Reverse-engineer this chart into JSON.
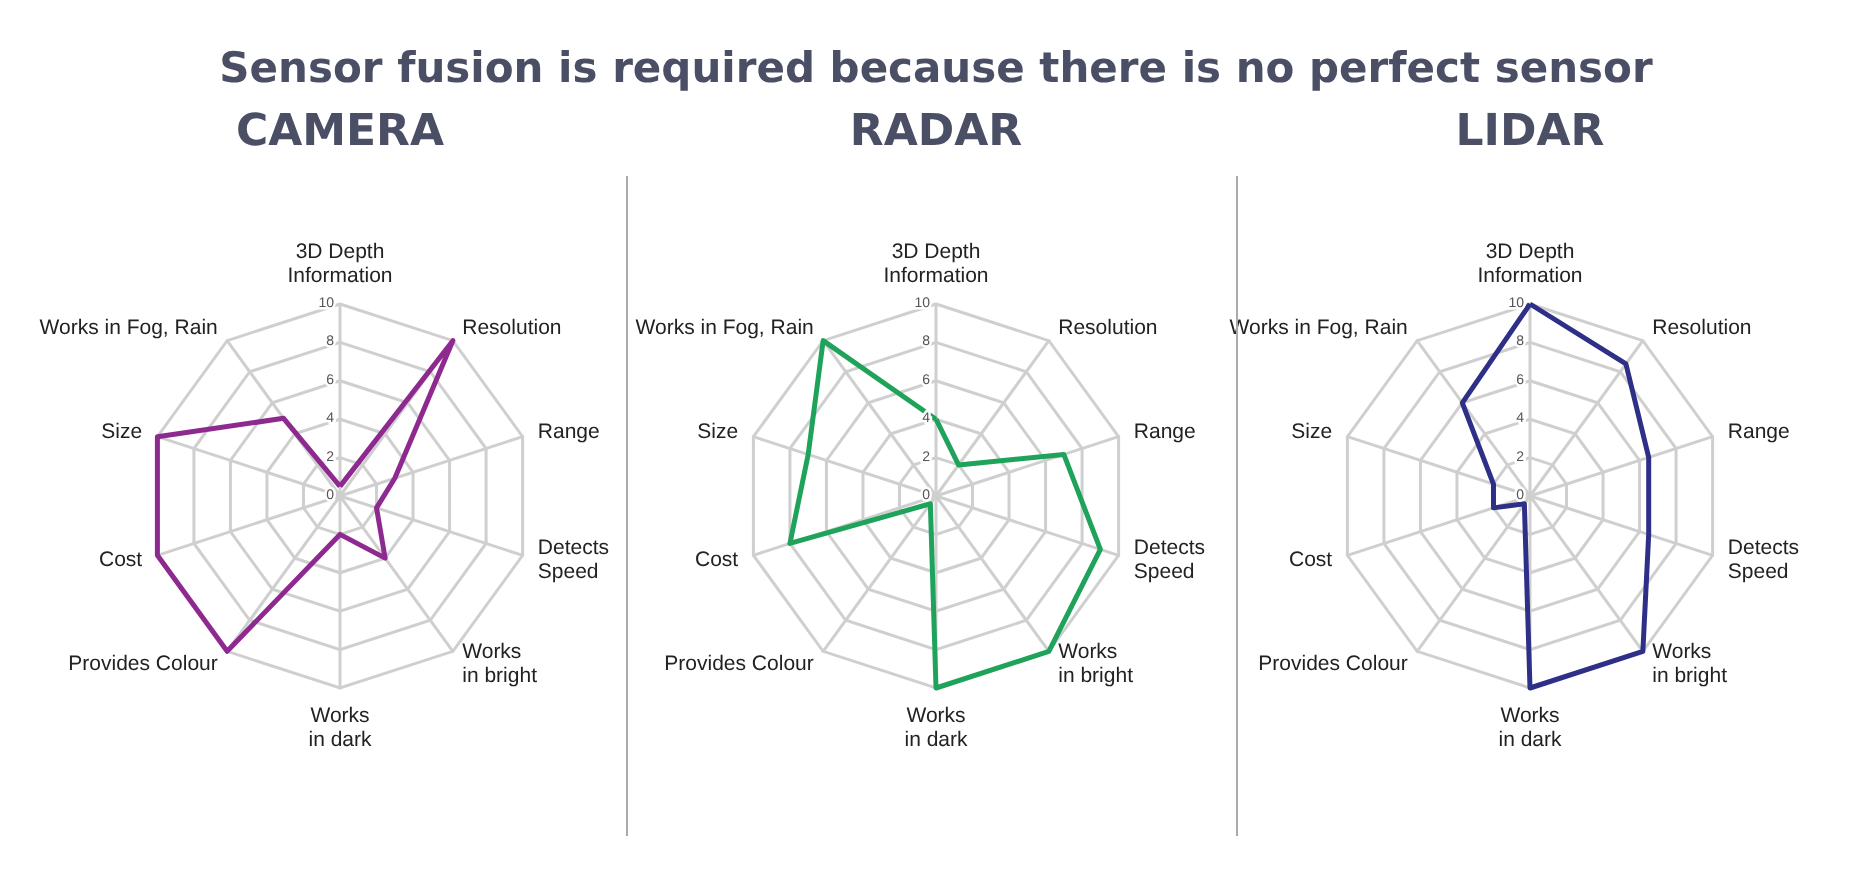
{
  "chart_data": [
    {
      "type": "other",
      "title": "Sensor fusion is required because there is no perfect sensor"
    },
    {
      "type": "radar",
      "title": "CAMERA",
      "categories": [
        "3D Depth\nInformation",
        "Resolution",
        "Range",
        "Detects\nSpeed",
        "Works\nin bright",
        "Works\nin dark",
        "Provides Colour",
        "Cost",
        "Size",
        "Works in Fog, Rain"
      ],
      "ylim": [
        0,
        10
      ],
      "yticks": [
        0,
        2,
        4,
        6,
        8,
        10
      ],
      "grid": true,
      "series": [
        {
          "color": "#8e2a8f",
          "values": [
            0.5,
            10,
            3,
            2,
            4,
            2,
            10,
            10,
            10,
            5
          ]
        }
      ]
    },
    {
      "type": "radar",
      "title": "RADAR",
      "categories": [
        "3D Depth\nInformation",
        "Resolution",
        "Range",
        "Detects\nSpeed",
        "Works\nin bright",
        "Works\nin dark",
        "Provides Colour",
        "Cost",
        "Size",
        "Works in Fog, Rain"
      ],
      "ylim": [
        0,
        10
      ],
      "yticks": [
        0,
        2,
        4,
        6,
        8,
        10
      ],
      "grid": true,
      "series": [
        {
          "color": "#1fa35b",
          "values": [
            4,
            2,
            7,
            9,
            10,
            10,
            0.5,
            8,
            7,
            10
          ]
        }
      ]
    },
    {
      "type": "radar",
      "title": "LIDAR",
      "categories": [
        "3D Depth\nInformation",
        "Resolution",
        "Range",
        "Detects\nSpeed",
        "Works\nin bright",
        "Works\nin dark",
        "Provides Colour",
        "Cost",
        "Size",
        "Works in Fog, Rain"
      ],
      "ylim": [
        0,
        10
      ],
      "yticks": [
        0,
        2,
        4,
        6,
        8,
        10
      ],
      "grid": true,
      "series": [
        {
          "color": "#2e2f86",
          "values": [
            10,
            8.5,
            6.5,
            6.5,
            10,
            10,
            0.5,
            2,
            2,
            6
          ]
        }
      ]
    }
  ]
}
